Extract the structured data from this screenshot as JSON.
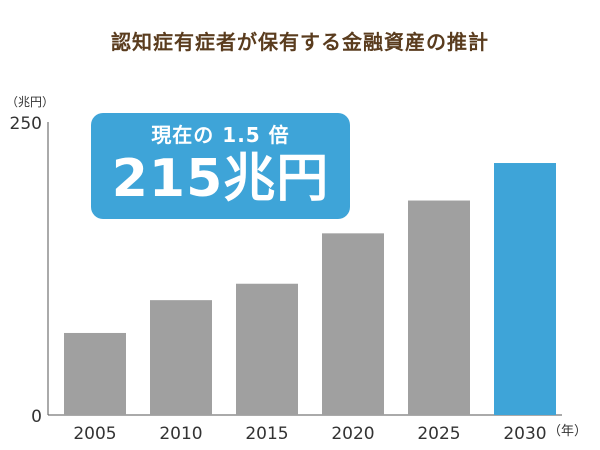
{
  "title": "認知症有症者が保有する金融資産の推計",
  "callout": {
    "subtitle": "現在の 1.5 倍",
    "value": "215兆円"
  },
  "colors": {
    "bar": "#a0a0a0",
    "highlight": "#3ea4d8",
    "title": "#5a3c1e"
  },
  "chart_data": {
    "type": "bar",
    "categories": [
      "2005",
      "2010",
      "2015",
      "2020",
      "2025",
      "2030"
    ],
    "values": [
      70,
      98,
      112,
      155,
      183,
      215
    ],
    "highlight_index": 5,
    "ylabel": "（兆円）",
    "xlabel": "（年）",
    "ylim": [
      0,
      250
    ],
    "yticks": [
      0,
      250
    ],
    "grid": false
  }
}
